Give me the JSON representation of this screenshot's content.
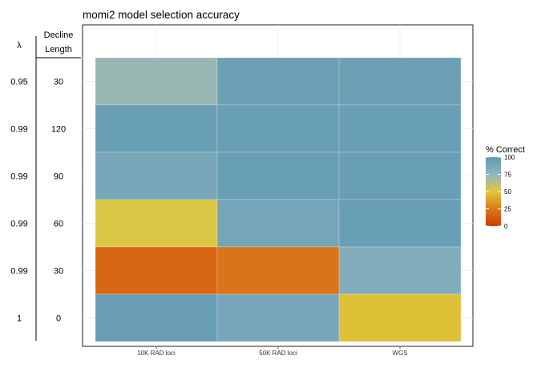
{
  "chart_data": {
    "type": "heatmap",
    "title": "momi2 model selection accuracy",
    "x_categories": [
      "10K RAD loci",
      "50K RAD loci",
      "WGS"
    ],
    "row_header": {
      "lambda": "λ",
      "decline_line1": "Decline",
      "decline_line2": "Length"
    },
    "rows": [
      {
        "lambda": "0.95",
        "decline": "30",
        "values": [
          72,
          94,
          94
        ]
      },
      {
        "lambda": "0.99",
        "decline": "120",
        "values": [
          95,
          95,
          95
        ]
      },
      {
        "lambda": "0.99",
        "decline": "90",
        "values": [
          88,
          95,
          95
        ]
      },
      {
        "lambda": "0.99",
        "decline": "60",
        "values": [
          52,
          89,
          95
        ]
      },
      {
        "lambda": "0.99",
        "decline": "30",
        "values": [
          17,
          23,
          82
        ]
      },
      {
        "lambda": "1",
        "decline": "0",
        "values": [
          96,
          88,
          48
        ]
      }
    ],
    "legend": {
      "title": "% Correct",
      "ticks": [
        0,
        25,
        50,
        75,
        100
      ],
      "range": [
        0,
        100
      ],
      "colors": [
        "#d43a00",
        "#d97a1a",
        "#e0c73a",
        "#8fb5c2",
        "#6099b1"
      ]
    },
    "grid": true
  }
}
